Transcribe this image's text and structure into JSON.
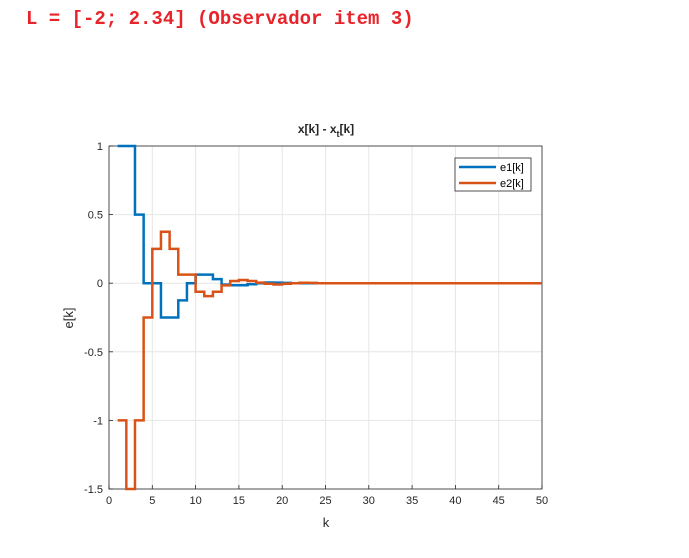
{
  "heading": "L = [-2; 2.34] (Observador item 3)",
  "colors": {
    "heading": "#e8232a",
    "e1": "#0072bd",
    "e2": "#d95319",
    "grid": "#e6e6e6",
    "axis": "#262626"
  },
  "chart_data": {
    "type": "line",
    "style": "stairs",
    "title_main": "x[k] - x",
    "title_sub": "t",
    "title_tail": "[k]",
    "xlabel": "k",
    "ylabel": "e[k]",
    "xlim": [
      0,
      50
    ],
    "ylim": [
      -1.5,
      1
    ],
    "xticks": [
      0,
      5,
      10,
      15,
      20,
      25,
      30,
      35,
      40,
      45,
      50
    ],
    "yticks": [
      1,
      0.5,
      0,
      -0.5,
      -1,
      -1.5
    ],
    "ytick_labels": [
      "1",
      "0.5",
      "0",
      "-0.5",
      "-1",
      "-1.5"
    ],
    "grid": true,
    "legend_position": "top-right",
    "x": [
      1,
      2,
      3,
      4,
      5,
      6,
      7,
      8,
      9,
      10,
      11,
      12,
      13,
      14,
      15,
      16,
      17,
      18,
      19,
      20,
      21,
      22,
      23,
      24,
      25,
      26,
      27,
      28,
      29,
      30,
      31,
      32,
      33,
      34,
      35,
      36,
      37,
      38,
      39,
      40,
      41,
      42,
      43,
      44,
      45,
      46,
      47,
      48,
      49,
      50
    ],
    "series": [
      {
        "name": "e1[k]",
        "values": [
          1,
          1,
          0.5,
          0,
          0,
          -0.25,
          -0.25,
          -0.125,
          0,
          0.0625,
          0.0625,
          0.03,
          -0.01,
          -0.015,
          -0.015,
          -0.008,
          0,
          0.005,
          0.004,
          0.002,
          0,
          0,
          0,
          0,
          0,
          0,
          0,
          0,
          0,
          0,
          0,
          0,
          0,
          0,
          0,
          0,
          0,
          0,
          0,
          0,
          0,
          0,
          0,
          0,
          0,
          0,
          0,
          0,
          0,
          0
        ]
      },
      {
        "name": "e2[k]",
        "values": [
          -1,
          -1.5,
          -1,
          -0.25,
          0.25,
          0.375,
          0.25,
          0.0625,
          0.0625,
          -0.0625,
          -0.0938,
          -0.0625,
          -0.0156,
          0.0156,
          0.0234,
          0.0156,
          0.0039,
          -0.0039,
          -0.0098,
          -0.0039,
          0,
          0.003,
          0.002,
          0,
          0,
          0,
          0,
          0,
          0,
          0,
          0,
          0,
          0,
          0,
          0,
          0,
          0,
          0,
          0,
          0,
          0,
          0,
          0,
          0,
          0,
          0,
          0,
          0,
          0,
          0
        ]
      }
    ]
  }
}
